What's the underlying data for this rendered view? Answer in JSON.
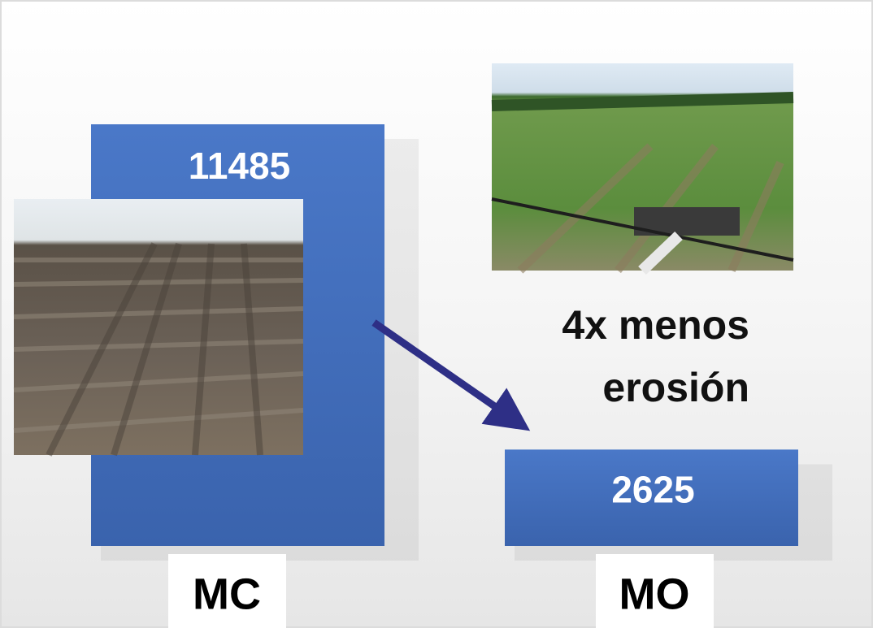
{
  "chart_data": {
    "type": "bar",
    "categories": [
      "MC",
      "MO"
    ],
    "values": [
      11485,
      2625
    ],
    "color": "#4472c4",
    "annotation": "4x menos erosión"
  }
}
